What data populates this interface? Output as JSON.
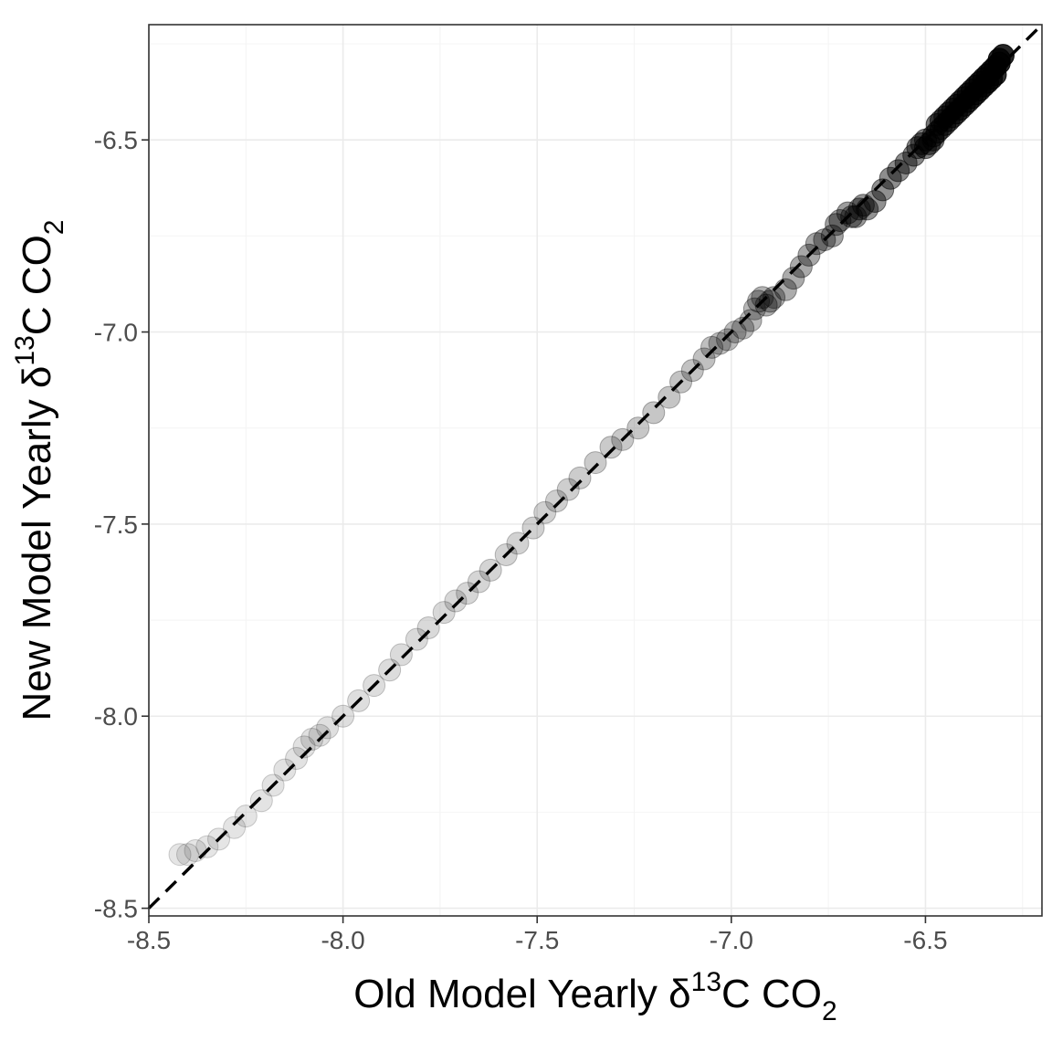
{
  "chart_data": {
    "type": "scatter",
    "xlabel": {
      "main": "Old Model Yearly δ",
      "sup": "13",
      "rest": "C CO",
      "sub": "2"
    },
    "ylabel": {
      "main": "New Model Yearly δ",
      "sup": "13",
      "rest": "C CO",
      "sub": "2"
    },
    "xlim": [
      -8.5,
      -6.2
    ],
    "ylim": [
      -8.52,
      -6.2
    ],
    "x_ticks": [
      -8.5,
      -8.0,
      -7.5,
      -7.0,
      -6.5
    ],
    "x_tick_labels": [
      "-8.5",
      "-8.0",
      "-7.5",
      "-7.0",
      "-6.5"
    ],
    "y_ticks": [
      -8.5,
      -8.0,
      -7.5,
      -7.0,
      -6.5
    ],
    "y_tick_labels": [
      "-8.5",
      "-8.0",
      "-7.5",
      "-7.0",
      "-6.5"
    ],
    "reference_line": "y = x (dashed)",
    "point_shading": "alpha increases along the series (later years darker)",
    "points": [
      [
        -8.42,
        -8.36
      ],
      [
        -8.4,
        -8.36
      ],
      [
        -8.38,
        -8.35
      ],
      [
        -8.35,
        -8.34
      ],
      [
        -8.32,
        -8.32
      ],
      [
        -8.28,
        -8.29
      ],
      [
        -8.25,
        -8.26
      ],
      [
        -8.21,
        -8.22
      ],
      [
        -8.18,
        -8.18
      ],
      [
        -8.15,
        -8.14
      ],
      [
        -8.12,
        -8.11
      ],
      [
        -8.1,
        -8.08
      ],
      [
        -8.08,
        -8.06
      ],
      [
        -8.06,
        -8.05
      ],
      [
        -8.04,
        -8.03
      ],
      [
        -8.0,
        -8.0
      ],
      [
        -7.96,
        -7.96
      ],
      [
        -7.92,
        -7.92
      ],
      [
        -7.88,
        -7.88
      ],
      [
        -7.85,
        -7.84
      ],
      [
        -7.81,
        -7.8
      ],
      [
        -7.78,
        -7.77
      ],
      [
        -7.74,
        -7.73
      ],
      [
        -7.71,
        -7.7
      ],
      [
        -7.68,
        -7.68
      ],
      [
        -7.65,
        -7.65
      ],
      [
        -7.62,
        -7.62
      ],
      [
        -7.58,
        -7.58
      ],
      [
        -7.55,
        -7.55
      ],
      [
        -7.51,
        -7.51
      ],
      [
        -7.48,
        -7.47
      ],
      [
        -7.45,
        -7.44
      ],
      [
        -7.42,
        -7.41
      ],
      [
        -7.39,
        -7.38
      ],
      [
        -7.35,
        -7.34
      ],
      [
        -7.31,
        -7.3
      ],
      [
        -7.28,
        -7.28
      ],
      [
        -7.24,
        -7.25
      ],
      [
        -7.2,
        -7.21
      ],
      [
        -7.16,
        -7.17
      ],
      [
        -7.13,
        -7.13
      ],
      [
        -7.1,
        -7.1
      ],
      [
        -7.07,
        -7.07
      ],
      [
        -7.05,
        -7.04
      ],
      [
        -7.03,
        -7.03
      ],
      [
        -7.01,
        -7.02
      ],
      [
        -6.99,
        -7.0
      ],
      [
        -6.97,
        -6.99
      ],
      [
        -6.95,
        -6.97
      ],
      [
        -6.94,
        -6.94
      ],
      [
        -6.93,
        -6.92
      ],
      [
        -6.92,
        -6.91
      ],
      [
        -6.91,
        -6.93
      ],
      [
        -6.9,
        -6.92
      ],
      [
        -6.89,
        -6.91
      ],
      [
        -6.86,
        -6.89
      ],
      [
        -6.84,
        -6.86
      ],
      [
        -6.82,
        -6.83
      ],
      [
        -6.8,
        -6.8
      ],
      [
        -6.78,
        -6.77
      ],
      [
        -6.76,
        -6.76
      ],
      [
        -6.74,
        -6.75
      ],
      [
        -6.73,
        -6.72
      ],
      [
        -6.72,
        -6.71
      ],
      [
        -6.7,
        -6.69
      ],
      [
        -6.69,
        -6.7
      ],
      [
        -6.68,
        -6.7
      ],
      [
        -6.67,
        -6.68
      ],
      [
        -6.66,
        -6.67
      ],
      [
        -6.65,
        -6.68
      ],
      [
        -6.63,
        -6.66
      ],
      [
        -6.61,
        -6.63
      ],
      [
        -6.59,
        -6.6
      ],
      [
        -6.57,
        -6.58
      ],
      [
        -6.55,
        -6.56
      ],
      [
        -6.53,
        -6.54
      ],
      [
        -6.52,
        -6.52
      ],
      [
        -6.51,
        -6.51
      ],
      [
        -6.5,
        -6.5
      ],
      [
        -6.5,
        -6.52
      ],
      [
        -6.49,
        -6.51
      ],
      [
        -6.48,
        -6.49
      ],
      [
        -6.48,
        -6.5
      ],
      [
        -6.47,
        -6.48
      ],
      [
        -6.47,
        -6.46
      ],
      [
        -6.46,
        -6.47
      ],
      [
        -6.46,
        -6.45
      ],
      [
        -6.45,
        -6.46
      ],
      [
        -6.45,
        -6.44
      ],
      [
        -6.44,
        -6.45
      ],
      [
        -6.44,
        -6.43
      ],
      [
        -6.43,
        -6.44
      ],
      [
        -6.43,
        -6.42
      ],
      [
        -6.42,
        -6.43
      ],
      [
        -6.42,
        -6.41
      ],
      [
        -6.41,
        -6.42
      ],
      [
        -6.41,
        -6.4
      ],
      [
        -6.4,
        -6.41
      ],
      [
        -6.4,
        -6.39
      ],
      [
        -6.39,
        -6.4
      ],
      [
        -6.39,
        -6.38
      ],
      [
        -6.38,
        -6.39
      ],
      [
        -6.38,
        -6.37
      ],
      [
        -6.37,
        -6.38
      ],
      [
        -6.37,
        -6.36
      ],
      [
        -6.36,
        -6.37
      ],
      [
        -6.36,
        -6.35
      ],
      [
        -6.35,
        -6.36
      ],
      [
        -6.35,
        -6.34
      ],
      [
        -6.34,
        -6.35
      ],
      [
        -6.34,
        -6.33
      ],
      [
        -6.33,
        -6.34
      ],
      [
        -6.33,
        -6.32
      ],
      [
        -6.32,
        -6.33
      ],
      [
        -6.32,
        -6.31
      ],
      [
        -6.31,
        -6.3
      ],
      [
        -6.31,
        -6.29
      ],
      [
        -6.3,
        -6.28
      ]
    ]
  }
}
